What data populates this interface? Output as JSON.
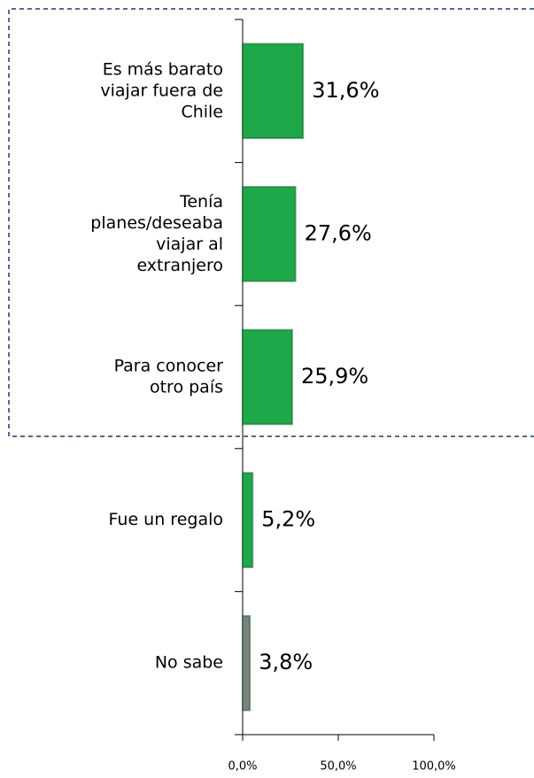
{
  "chart_data": {
    "type": "hbar",
    "categories": [
      [
        "Es más barato",
        "viajar fuera de",
        "Chile"
      ],
      [
        "Tenía",
        "planes/deseaba",
        "viajar al",
        "extranjero"
      ],
      [
        "Para conocer",
        "otro país"
      ],
      [
        "Fue un regalo"
      ],
      [
        "No sabe"
      ]
    ],
    "values": [
      31.6,
      27.6,
      25.9,
      5.2,
      3.8
    ],
    "value_labels": [
      "31,6%",
      "27,6%",
      "25,9%",
      "5,2%",
      "3,8%"
    ],
    "colors": [
      "#1fa84a",
      "#1fa84a",
      "#1fa84a",
      "#1fa84a",
      "#808080"
    ],
    "xlim": [
      0,
      100
    ],
    "xticks": [
      {
        "value": 0,
        "label": "0,0%"
      },
      {
        "value": 50,
        "label": "50,0%"
      },
      {
        "value": 100,
        "label": "100,0%"
      }
    ]
  }
}
